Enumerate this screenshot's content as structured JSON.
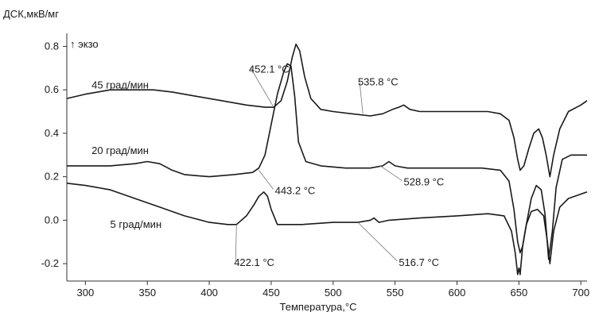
{
  "chart_data": {
    "type": "line",
    "ylabel": "ДСК,мкВ/мг",
    "exo_label": "↑ экзо",
    "xlabel": "Температура,°C",
    "xlim": [
      285,
      705
    ],
    "ylim": [
      -0.28,
      0.86
    ],
    "xticks": [
      300,
      350,
      400,
      450,
      500,
      550,
      600,
      650,
      700
    ],
    "yticks": [
      0.8,
      0.6,
      0.4,
      0.2,
      0.0,
      -0.2
    ],
    "ytick_labels": [
      "0.8",
      "0.6",
      "0.4",
      "0.2",
      "0.0",
      "-0.2"
    ],
    "grid": false,
    "series": [
      {
        "name": "45 град/мин",
        "color": "#1a1a1a",
        "x": [
          285,
          300,
          320,
          340,
          355,
          370,
          390,
          410,
          430,
          445,
          452,
          458,
          463,
          467,
          470,
          473,
          477,
          482,
          490,
          500,
          515,
          530,
          540,
          548,
          553,
          557,
          562,
          570,
          590,
          610,
          625,
          635,
          642,
          646,
          649,
          651,
          654,
          658,
          662,
          666,
          669,
          672,
          675,
          678,
          683,
          690,
          700,
          705
        ],
        "y": [
          0.56,
          0.58,
          0.6,
          0.6,
          0.6,
          0.59,
          0.57,
          0.55,
          0.53,
          0.52,
          0.52,
          0.55,
          0.64,
          0.75,
          0.81,
          0.78,
          0.66,
          0.56,
          0.51,
          0.5,
          0.49,
          0.48,
          0.49,
          0.51,
          0.52,
          0.53,
          0.51,
          0.5,
          0.5,
          0.5,
          0.5,
          0.49,
          0.46,
          0.38,
          0.28,
          0.23,
          0.25,
          0.33,
          0.4,
          0.42,
          0.38,
          0.3,
          0.2,
          0.3,
          0.42,
          0.5,
          0.53,
          0.55
        ]
      },
      {
        "name": "20 град/мин",
        "color": "#1a1a1a",
        "x": [
          285,
          300,
          320,
          340,
          350,
          360,
          370,
          380,
          400,
          420,
          435,
          440,
          445,
          450,
          455,
          460,
          463,
          466,
          469,
          472,
          478,
          490,
          510,
          530,
          540,
          545,
          550,
          560,
          580,
          600,
          620,
          635,
          642,
          646,
          649,
          651,
          653,
          656,
          660,
          664,
          668,
          671,
          674,
          677,
          680,
          685,
          692,
          700,
          705
        ],
        "y": [
          0.25,
          0.25,
          0.25,
          0.26,
          0.27,
          0.26,
          0.23,
          0.21,
          0.2,
          0.21,
          0.22,
          0.24,
          0.3,
          0.44,
          0.58,
          0.68,
          0.72,
          0.71,
          0.57,
          0.36,
          0.27,
          0.25,
          0.24,
          0.24,
          0.25,
          0.27,
          0.25,
          0.24,
          0.24,
          0.24,
          0.24,
          0.23,
          0.18,
          0.05,
          -0.1,
          -0.15,
          -0.12,
          -0.02,
          0.1,
          0.16,
          0.14,
          0.03,
          -0.18,
          -0.05,
          0.15,
          0.28,
          0.3,
          0.3,
          0.3
        ]
      },
      {
        "name": "5 град/мин",
        "color": "#1a1a1a",
        "x": [
          285,
          300,
          320,
          340,
          360,
          380,
          400,
          415,
          422,
          430,
          436,
          440,
          444,
          447,
          450,
          455,
          462,
          475,
          500,
          520,
          530,
          533,
          537,
          545,
          570,
          600,
          625,
          638,
          644,
          647,
          649,
          650,
          651,
          653,
          656,
          660,
          665,
          670,
          673,
          675,
          678,
          683,
          690,
          700,
          705
        ],
        "y": [
          0.17,
          0.16,
          0.14,
          0.1,
          0.06,
          0.02,
          -0.01,
          -0.02,
          -0.02,
          0.02,
          0.07,
          0.11,
          0.13,
          0.11,
          0.05,
          -0.02,
          -0.02,
          -0.02,
          -0.01,
          -0.01,
          0.0,
          0.01,
          -0.01,
          0.0,
          0.01,
          0.02,
          0.03,
          0.02,
          -0.05,
          -0.15,
          -0.25,
          -0.22,
          -0.25,
          -0.12,
          -0.02,
          0.04,
          0.05,
          0.02,
          -0.1,
          -0.2,
          -0.05,
          0.06,
          0.1,
          0.12,
          0.13
        ]
      }
    ],
    "series_labels": [
      {
        "text": "45 град/мин",
        "x": 305,
        "y": 0.62
      },
      {
        "text": "20 град/мин",
        "x": 305,
        "y": 0.32
      },
      {
        "text": "5 град/мин",
        "x": 320,
        "y": -0.02
      }
    ],
    "annotations": [
      {
        "text": "452.1 °C",
        "text_x": 432,
        "text_y": 0.68,
        "point_x": 452,
        "point_y": 0.52
      },
      {
        "text": "535.8 °C",
        "text_x": 520,
        "text_y": 0.62,
        "point_x": 524,
        "point_y": 0.49
      },
      {
        "text": "443.2 °C",
        "text_x": 453,
        "text_y": 0.12,
        "point_x": 440,
        "point_y": 0.23
      },
      {
        "text": "528.9 °C",
        "text_x": 557,
        "text_y": 0.16,
        "point_x": 538,
        "point_y": 0.25
      },
      {
        "text": "422.1 °C",
        "text_x": 420,
        "text_y": -0.21,
        "point_x": 422,
        "point_y": -0.02
      },
      {
        "text": "516.7 °C",
        "text_x": 553,
        "text_y": -0.21,
        "point_x": 520,
        "point_y": -0.01
      }
    ]
  }
}
